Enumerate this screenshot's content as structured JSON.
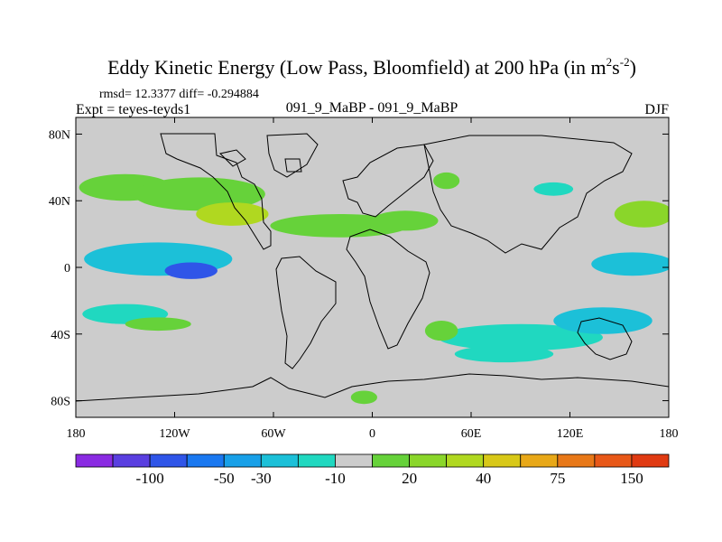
{
  "chart_data": {
    "type": "heatmap",
    "title": "Eddy Kinetic Energy (Low Pass, Bloomfield) at 200 hPa (in m",
    "title_unit": {
      "s": "s",
      "exp1": "2",
      "exp2": "-2",
      "close": ")"
    },
    "stats_line": "rmsd= 12.3377 diff= -0.294884",
    "experiment_label": "Expt = teyes-teyds1",
    "comparison_label": "091_9_MaBP - 091_9_MaBP",
    "season_label": "DJF",
    "x_axis": {
      "range": [
        -180,
        180
      ],
      "ticks": [
        {
          "value": -180,
          "label": "180"
        },
        {
          "value": -120,
          "label": "120W"
        },
        {
          "value": -60,
          "label": "60W"
        },
        {
          "value": 0,
          "label": "0"
        },
        {
          "value": 60,
          "label": "60E"
        },
        {
          "value": 120,
          "label": "120E"
        },
        {
          "value": 180,
          "label": "180"
        }
      ]
    },
    "y_axis": {
      "range": [
        -90,
        90
      ],
      "ticks": [
        {
          "value": 80,
          "label": "80N"
        },
        {
          "value": 40,
          "label": "40N"
        },
        {
          "value": 0,
          "label": "0"
        },
        {
          "value": -40,
          "label": "40S"
        },
        {
          "value": -80,
          "label": "80S"
        }
      ]
    },
    "colorbar": {
      "colors": [
        "#8a2be2",
        "#5a3fe0",
        "#2f55e8",
        "#1a78f0",
        "#18a0e8",
        "#1cc0d8",
        "#20d8c0",
        "#cccccc",
        "#66d23a",
        "#8ad62a",
        "#b0d820",
        "#d8c818",
        "#e8a818",
        "#e87818",
        "#e85818",
        "#e03a12"
      ],
      "labels": [
        {
          "text": "-100",
          "boundary": 2
        },
        {
          "text": "-50",
          "boundary": 4
        },
        {
          "text": "-30",
          "boundary": 5
        },
        {
          "text": "-10",
          "boundary": 7
        },
        {
          "text": "20",
          "boundary": 9
        },
        {
          "text": "40",
          "boundary": 11
        },
        {
          "text": "75",
          "boundary": 13
        },
        {
          "text": "150",
          "boundary": 15
        }
      ]
    },
    "background_color": "#cccccc",
    "anomaly_regions": [
      {
        "name": "n-pacific-green-1",
        "lon": -150,
        "lat": 48,
        "rx": 28,
        "ry": 8,
        "level": 8
      },
      {
        "name": "n-pacific-green-2",
        "lon": -105,
        "lat": 44,
        "rx": 40,
        "ry": 10,
        "level": 8
      },
      {
        "name": "n-pacific-yellow",
        "lon": -85,
        "lat": 32,
        "rx": 22,
        "ry": 7,
        "level": 10
      },
      {
        "name": "n-atlantic-green",
        "lon": -20,
        "lat": 25,
        "rx": 42,
        "ry": 7,
        "level": 8
      },
      {
        "name": "eurasia-green",
        "lon": 20,
        "lat": 28,
        "rx": 20,
        "ry": 6,
        "level": 8
      },
      {
        "name": "n-pacific-east-green",
        "lon": 165,
        "lat": 32,
        "rx": 18,
        "ry": 8,
        "level": 9
      },
      {
        "name": "trop-pacific-cyan",
        "lon": -130,
        "lat": 5,
        "rx": 45,
        "ry": 10,
        "level": 5
      },
      {
        "name": "trop-pacific-blue",
        "lon": -110,
        "lat": -2,
        "rx": 16,
        "ry": 5,
        "level": 2
      },
      {
        "name": "trop-east-cyan",
        "lon": 158,
        "lat": 2,
        "rx": 25,
        "ry": 7,
        "level": 5
      },
      {
        "name": "s-pacific-cyan",
        "lon": -150,
        "lat": -28,
        "rx": 26,
        "ry": 6,
        "level": 6
      },
      {
        "name": "s-pacific-green",
        "lon": -130,
        "lat": -34,
        "rx": 20,
        "ry": 4,
        "level": 8
      },
      {
        "name": "s-indian-cyan",
        "lon": 90,
        "lat": -42,
        "rx": 50,
        "ry": 8,
        "level": 6
      },
      {
        "name": "australia-cyan",
        "lon": 140,
        "lat": -32,
        "rx": 30,
        "ry": 8,
        "level": 5
      },
      {
        "name": "s-atlantic-green",
        "lon": 42,
        "lat": -38,
        "rx": 10,
        "ry": 6,
        "level": 8
      },
      {
        "name": "s-ocean-cyan",
        "lon": 80,
        "lat": -52,
        "rx": 30,
        "ry": 5,
        "level": 6
      },
      {
        "name": "antarctic-green",
        "lon": -5,
        "lat": -78,
        "rx": 8,
        "ry": 4,
        "level": 8
      },
      {
        "name": "n-atlantic-green-2",
        "lon": 45,
        "lat": 52,
        "rx": 8,
        "ry": 5,
        "level": 8
      },
      {
        "name": "siberia-cyan",
        "lon": 110,
        "lat": 47,
        "rx": 12,
        "ry": 4,
        "level": 6
      }
    ]
  }
}
